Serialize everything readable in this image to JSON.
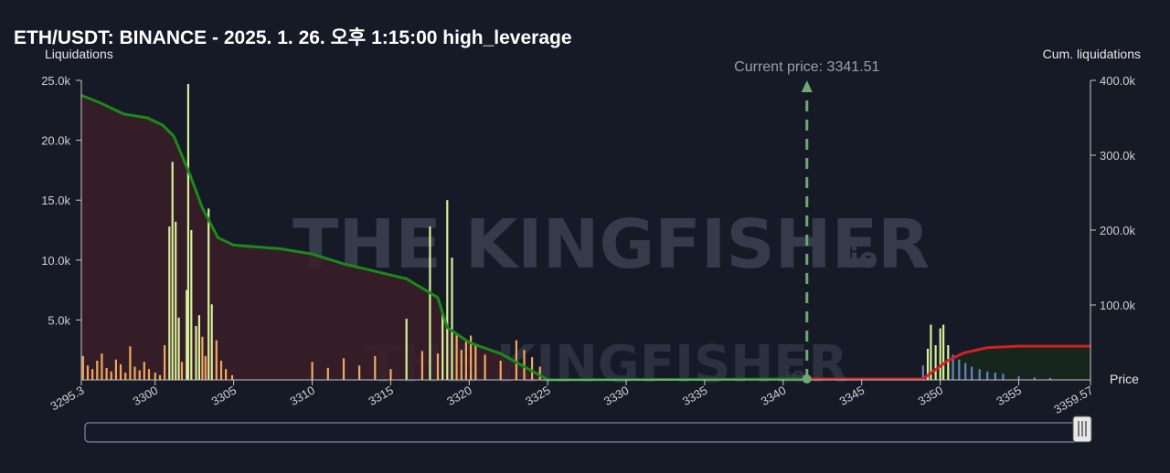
{
  "title": "ETH/USDT: BINANCE - 2025. 1. 26. 오후 1:15:00 high_leverage",
  "watermark": {
    "brand": "THE KINGFISHER",
    "suffix": ".io"
  },
  "colors": {
    "background": "#161a27",
    "short_bars_bright": "#d8ee9a",
    "short_bars": "#f0a860",
    "long_bars": "#6a80c8",
    "cum_short_line": "#1a8a1a",
    "cum_long_line": "#d42020",
    "cum_short_fill": "#3a1e28",
    "current_price_line": "#6fa86f",
    "scrollbar_border": "#9aa0b0"
  },
  "chart_data": {
    "type": "bar",
    "title": "ETH/USDT: BINANCE - 2025. 1. 26. 오후 1:15:00 high_leverage",
    "xlabel": "Price",
    "ylabel": "Liquidations",
    "y2label": "Cum. liquidations",
    "xlim": [
      3295.3,
      3359.57
    ],
    "ylim": [
      0,
      25000
    ],
    "y2lim": [
      0,
      400000
    ],
    "x_ticks": [
      "3295.3",
      "3300",
      "3305",
      "3310",
      "3315",
      "3320",
      "3325",
      "3330",
      "3335",
      "3340",
      "3345",
      "3350",
      "3355",
      "3359.57"
    ],
    "y_ticks": [
      "5.0k",
      "10.0k",
      "15.0k",
      "20.0k",
      "25.0k"
    ],
    "y2_ticks": [
      "100.0k",
      "200.0k",
      "300.0k",
      "400.0k"
    ],
    "current_price": {
      "label": "Current price: 3341.51",
      "value": 3341.51
    },
    "short_liquidation_bars": [
      [
        3295.4,
        2000
      ],
      [
        3295.7,
        1200
      ],
      [
        3296.0,
        900
      ],
      [
        3296.3,
        1600
      ],
      [
        3296.6,
        2200
      ],
      [
        3296.9,
        1000
      ],
      [
        3297.2,
        700
      ],
      [
        3297.5,
        1700
      ],
      [
        3297.8,
        1300
      ],
      [
        3298.1,
        600
      ],
      [
        3298.4,
        2800
      ],
      [
        3298.7,
        1100
      ],
      [
        3299.0,
        800
      ],
      [
        3299.3,
        1500
      ],
      [
        3299.6,
        900
      ],
      [
        3300.0,
        600
      ],
      [
        3300.3,
        400
      ],
      [
        3300.6,
        2900
      ],
      [
        3300.9,
        12800
      ],
      [
        3301.1,
        18200
      ],
      [
        3301.3,
        13200
      ],
      [
        3301.5,
        5200
      ],
      [
        3301.7,
        1500
      ],
      [
        3302.0,
        7500
      ],
      [
        3302.1,
        24700
      ],
      [
        3302.3,
        12500
      ],
      [
        3302.6,
        4500
      ],
      [
        3302.8,
        5400
      ],
      [
        3303.0,
        3600
      ],
      [
        3303.2,
        2000
      ],
      [
        3303.4,
        14300
      ],
      [
        3303.6,
        6300
      ],
      [
        3303.9,
        3300
      ],
      [
        3304.2,
        1600
      ],
      [
        3304.5,
        900
      ],
      [
        3304.9,
        400
      ],
      [
        3310.0,
        1500
      ],
      [
        3311.0,
        1000
      ],
      [
        3312.0,
        1800
      ],
      [
        3313.0,
        1200
      ],
      [
        3314.0,
        2000
      ],
      [
        3315.0,
        900
      ],
      [
        3316.0,
        5100
      ],
      [
        3317.0,
        2400
      ],
      [
        3317.5,
        12800
      ],
      [
        3318.0,
        2200
      ],
      [
        3318.3,
        5700
      ],
      [
        3318.6,
        15000
      ],
      [
        3318.9,
        10200
      ],
      [
        3319.2,
        3800
      ],
      [
        3319.5,
        2500
      ],
      [
        3319.8,
        3200
      ],
      [
        3320.1,
        3700
      ],
      [
        3320.4,
        2900
      ],
      [
        3321.0,
        2100
      ],
      [
        3322.0,
        1600
      ],
      [
        3323.0,
        3300
      ],
      [
        3323.5,
        2500
      ],
      [
        3324.0,
        1900
      ],
      [
        3324.5,
        1100
      ]
    ],
    "long_liquidation_bars": [
      [
        3348.9,
        1200
      ],
      [
        3349.2,
        2600
      ],
      [
        3349.4,
        4600
      ],
      [
        3349.7,
        2900
      ],
      [
        3350.0,
        4300
      ],
      [
        3350.2,
        4600
      ],
      [
        3350.5,
        2900
      ],
      [
        3350.8,
        2100
      ],
      [
        3351.2,
        1700
      ],
      [
        3351.6,
        1400
      ],
      [
        3352.0,
        1100
      ],
      [
        3352.5,
        900
      ],
      [
        3353.0,
        700
      ],
      [
        3353.5,
        600
      ],
      [
        3354.0,
        500
      ],
      [
        3355.0,
        300
      ],
      [
        3356.0,
        200
      ],
      [
        3357.0,
        150
      ]
    ],
    "cumulative_short": [
      [
        3295.3,
        380000
      ],
      [
        3296.5,
        370000
      ],
      [
        3298.0,
        355000
      ],
      [
        3299.5,
        350000
      ],
      [
        3300.5,
        340000
      ],
      [
        3301.2,
        325000
      ],
      [
        3302.2,
        275000
      ],
      [
        3303.0,
        230000
      ],
      [
        3304.0,
        190000
      ],
      [
        3305.0,
        180000
      ],
      [
        3308.0,
        175000
      ],
      [
        3310.0,
        168000
      ],
      [
        3312.0,
        155000
      ],
      [
        3314.0,
        145000
      ],
      [
        3316.0,
        135000
      ],
      [
        3318.0,
        110000
      ],
      [
        3318.6,
        70000
      ],
      [
        3320.0,
        50000
      ],
      [
        3322.0,
        35000
      ],
      [
        3324.0,
        12000
      ],
      [
        3325.0,
        0
      ]
    ],
    "cumulative_long": [
      [
        3341.51,
        0
      ],
      [
        3348.9,
        0
      ],
      [
        3349.6,
        12000
      ],
      [
        3350.5,
        26000
      ],
      [
        3351.5,
        36000
      ],
      [
        3353.0,
        43000
      ],
      [
        3355.0,
        45000
      ],
      [
        3357.0,
        45000
      ],
      [
        3359.57,
        45000
      ]
    ]
  }
}
